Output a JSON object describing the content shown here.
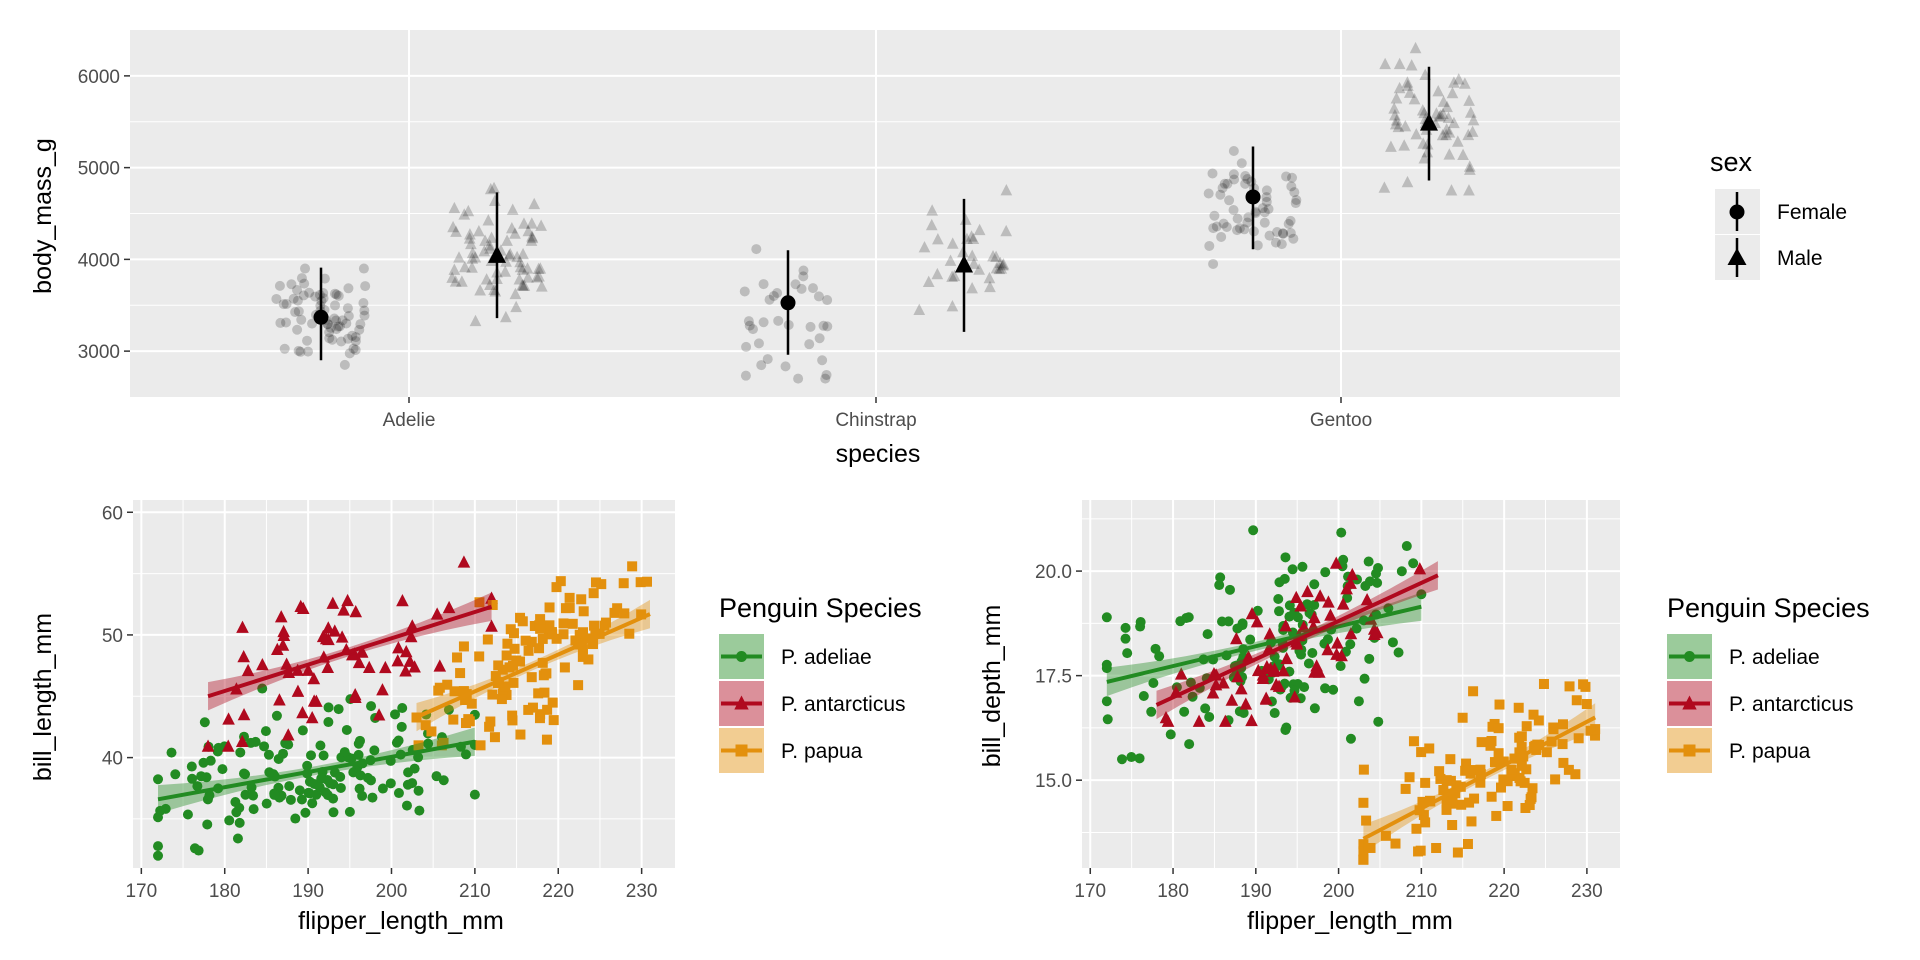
{
  "colors": {
    "panel_bg": "#ebebeb",
    "grid": "#ffffff",
    "tick_text": "#4d4d4d",
    "points_gray": "#000000",
    "adeliae": "#228B22",
    "antarcticus": "#B0091E",
    "papua": "#E3900D"
  },
  "chart_data": [
    {
      "type": "scatter",
      "panel": "top",
      "xlabel": "species",
      "ylabel": "body_mass_g",
      "categories": [
        "Adelie",
        "Chinstrap",
        "Gentoo"
      ],
      "yticks": [
        3000,
        4000,
        5000,
        6000
      ],
      "ylim": [
        2500,
        6500
      ],
      "grid": true,
      "legend": {
        "title": "sex",
        "position": "right",
        "entries": [
          {
            "label": "Female",
            "shape": "circle"
          },
          {
            "label": "Male",
            "shape": "triangle"
          }
        ]
      },
      "series": [
        {
          "name": "Female",
          "shape": "circle",
          "mean": [
            3369,
            3527,
            4680
          ],
          "sd_low": [
            2900,
            2960,
            4110
          ],
          "sd_high": [
            3910,
            4100,
            5230
          ]
        },
        {
          "name": "Male",
          "shape": "triangle",
          "mean": [
            4043,
            3939,
            5485
          ],
          "sd_low": [
            3360,
            3210,
            4860
          ],
          "sd_high": [
            4730,
            4660,
            6100
          ]
        }
      ],
      "jitter_summary": [
        {
          "species": "Adelie",
          "sex": "Female",
          "n": 73,
          "min": 2850,
          "max": 3900
        },
        {
          "species": "Adelie",
          "sex": "Male",
          "n": 73,
          "min": 3325,
          "max": 4775
        },
        {
          "species": "Chinstrap",
          "sex": "Female",
          "n": 34,
          "min": 2700,
          "max": 4150
        },
        {
          "species": "Chinstrap",
          "sex": "Male",
          "n": 34,
          "min": 3250,
          "max": 4800
        },
        {
          "species": "Gentoo",
          "sex": "Female",
          "n": 58,
          "min": 3950,
          "max": 5200
        },
        {
          "species": "Gentoo",
          "sex": "Male",
          "n": 61,
          "min": 4750,
          "max": 6300
        }
      ]
    },
    {
      "type": "scatter",
      "panel": "bottom-left",
      "xlabel": "flipper_length_mm",
      "ylabel": "bill_length_mm",
      "xlim": [
        169,
        234
      ],
      "ylim": [
        31,
        61
      ],
      "xticks": [
        170,
        180,
        190,
        200,
        210,
        220,
        230
      ],
      "yticks": [
        40,
        50,
        60
      ],
      "grid": true,
      "legend": {
        "title": "Penguin Species",
        "position": "right",
        "entries": [
          {
            "label": "P. adeliae",
            "shape": "circle"
          },
          {
            "label": "P. antarcticus",
            "shape": "triangle"
          },
          {
            "label": "P. papua",
            "shape": "square"
          }
        ]
      },
      "series": [
        {
          "name": "P. adeliae",
          "shape": "circle",
          "n": 151,
          "x_range": [
            172,
            210
          ],
          "y_range": [
            32,
            46
          ],
          "fit": {
            "x": [
              172,
              210
            ],
            "y": [
              36.6,
              41.3
            ]
          }
        },
        {
          "name": "P. antarcticus",
          "shape": "triangle",
          "n": 68,
          "x_range": [
            178,
            212
          ],
          "y_range": [
            40.9,
            58
          ],
          "fit": {
            "x": [
              178,
              212
            ],
            "y": [
              45.0,
              52.3
            ]
          }
        },
        {
          "name": "P. papua",
          "shape": "square",
          "n": 123,
          "x_range": [
            203,
            231
          ],
          "y_range": [
            41,
            59.6
          ],
          "fit": {
            "x": [
              203,
              231
            ],
            "y": [
              43.3,
              51.7
            ]
          }
        }
      ]
    },
    {
      "type": "scatter",
      "panel": "bottom-right",
      "xlabel": "flipper_length_mm",
      "ylabel": "bill_depth_mm",
      "xlim": [
        169,
        234
      ],
      "ylim": [
        12.9,
        21.7
      ],
      "xticks": [
        170,
        180,
        190,
        200,
        210,
        220,
        230
      ],
      "yticks": [
        15.0,
        17.5,
        20.0
      ],
      "ytick_labels": [
        "15.0",
        "17.5",
        "20.0"
      ],
      "grid": true,
      "legend": {
        "title": "Penguin Species",
        "position": "right",
        "entries": [
          {
            "label": "P. adeliae",
            "shape": "circle"
          },
          {
            "label": "P. antarcticus",
            "shape": "triangle"
          },
          {
            "label": "P. papua",
            "shape": "square"
          }
        ]
      },
      "series": [
        {
          "name": "P. adeliae",
          "shape": "circle",
          "n": 151,
          "x_range": [
            172,
            210
          ],
          "y_range": [
            15.5,
            21.5
          ],
          "fit": {
            "x": [
              172,
              210
            ],
            "y": [
              17.35,
              19.15
            ]
          }
        },
        {
          "name": "P. antarcticus",
          "shape": "triangle",
          "n": 68,
          "x_range": [
            178,
            212
          ],
          "y_range": [
            16.4,
            20.8
          ],
          "fit": {
            "x": [
              178,
              212
            ],
            "y": [
              16.8,
              19.9
            ]
          }
        },
        {
          "name": "P. papua",
          "shape": "square",
          "n": 123,
          "x_range": [
            203,
            231
          ],
          "y_range": [
            13.1,
            17.3
          ],
          "fit": {
            "x": [
              203,
              231
            ],
            "y": [
              13.6,
              16.5
            ]
          }
        }
      ]
    }
  ]
}
